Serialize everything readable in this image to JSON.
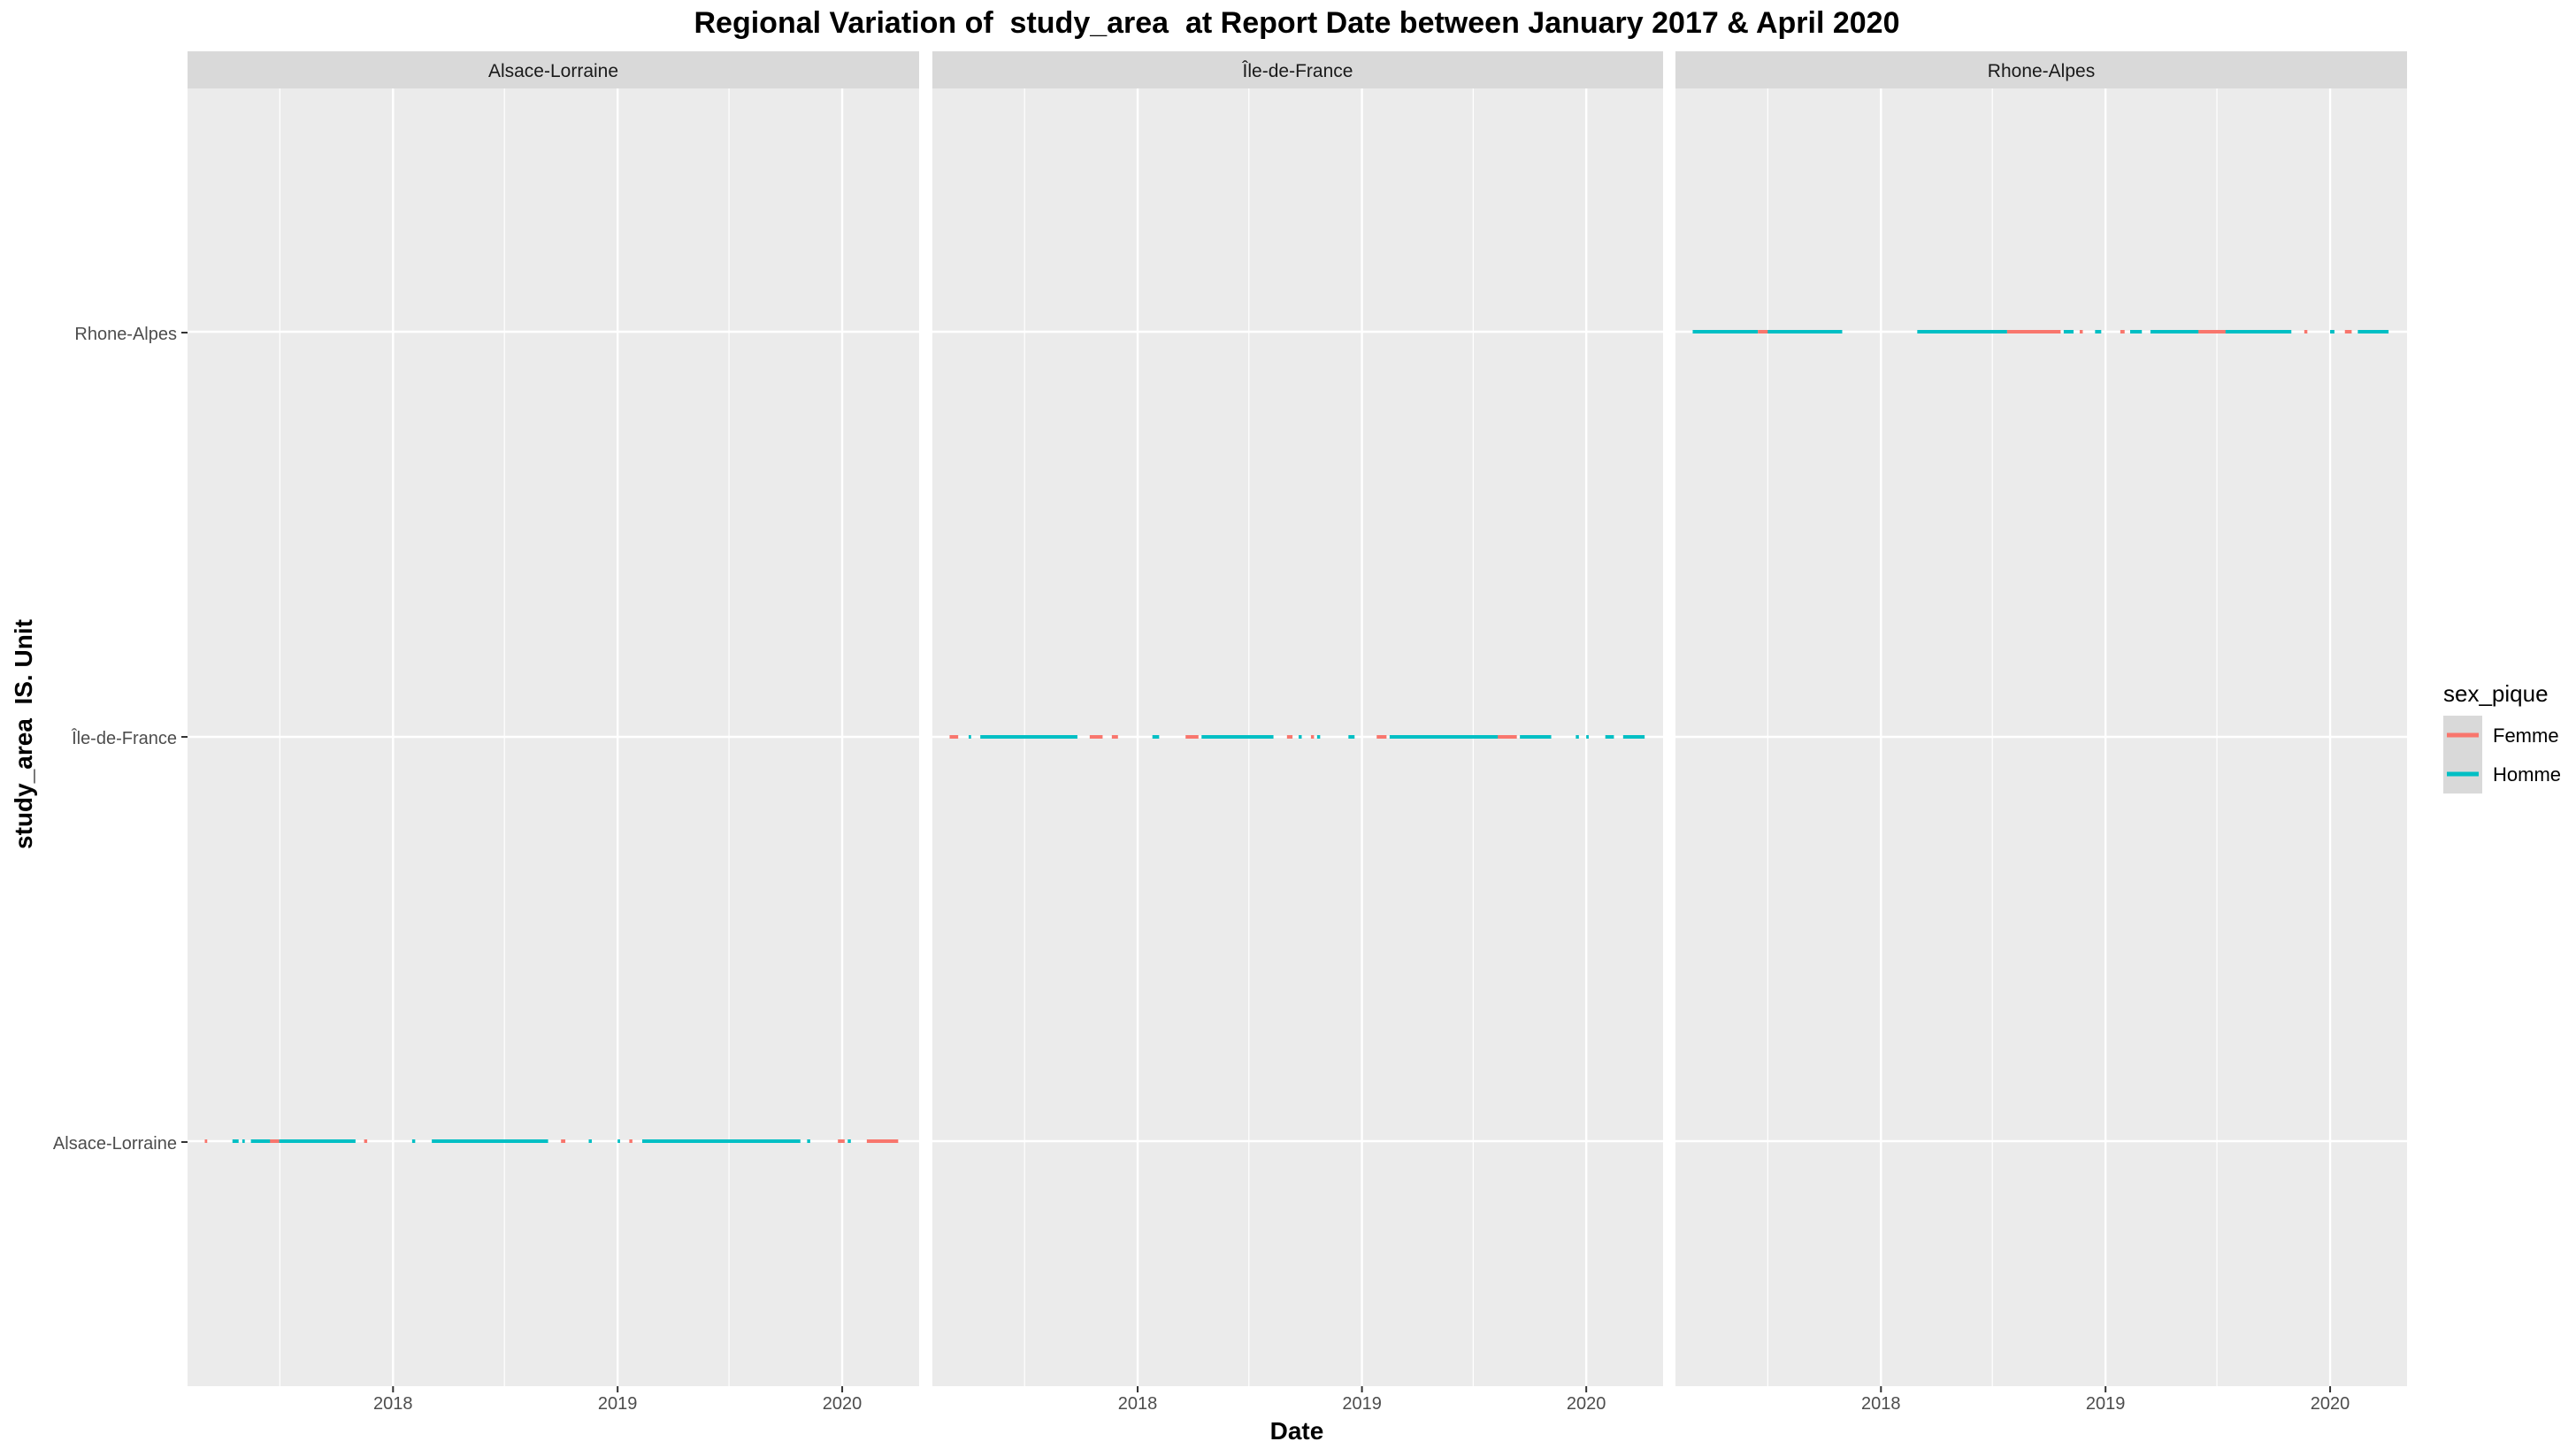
{
  "chart_data": {
    "type": "line",
    "title": "Regional Variation of  study_area  at Report Date between January 2017 & April 2020",
    "xlabel": "Date",
    "ylabel": "study_area  IS. Unit",
    "x_range": [
      "2017-02-01",
      "2020-05-05"
    ],
    "x_ticks": [
      "2018",
      "2019",
      "2020"
    ],
    "y_categories": [
      "Alsace-Lorraine",
      "Île-de-France",
      "Rhone-Alpes"
    ],
    "grid": true,
    "legend": {
      "title": "sex_pique",
      "placement": "right",
      "entries": [
        {
          "label": "Femme",
          "color": "#F8766D"
        },
        {
          "label": "Homme",
          "color": "#00BFC4"
        }
      ]
    },
    "panels": [
      {
        "name": "Alsace-Lorraine",
        "category": "Alsace-Lorraine",
        "series": [
          {
            "name": "Homme",
            "segments": [
              [
                "2017-04-15",
                "2017-04-25"
              ],
              [
                "2017-05-01",
                "2017-05-05"
              ],
              [
                "2017-05-15",
                "2017-11-01"
              ],
              [
                "2018-02-01",
                "2018-02-06"
              ],
              [
                "2018-03-05",
                "2018-09-10"
              ],
              [
                "2018-11-15",
                "2018-11-20"
              ],
              [
                "2019-01-01",
                "2019-01-05"
              ],
              [
                "2019-02-10",
                "2019-10-25"
              ],
              [
                "2019-11-05",
                "2019-11-10"
              ],
              [
                "2020-01-10",
                "2020-01-15"
              ]
            ]
          },
          {
            "name": "Femme",
            "segments": [
              [
                "2017-03-01",
                "2017-03-05"
              ],
              [
                "2017-06-15",
                "2017-06-30"
              ],
              [
                "2017-11-15",
                "2017-11-20"
              ],
              [
                "2018-10-01",
                "2018-10-08"
              ],
              [
                "2019-01-20",
                "2019-01-25"
              ],
              [
                "2019-12-25",
                "2020-01-05"
              ],
              [
                "2020-02-10",
                "2020-04-01"
              ]
            ]
          }
        ]
      },
      {
        "name": "Île-de-France",
        "category": "Île-de-France",
        "series": [
          {
            "name": "Homme",
            "segments": [
              [
                "2017-04-01",
                "2017-04-05"
              ],
              [
                "2017-04-20",
                "2017-09-25"
              ],
              [
                "2018-01-25",
                "2018-02-05"
              ],
              [
                "2018-04-15",
                "2018-08-10"
              ],
              [
                "2018-09-20",
                "2018-09-25"
              ],
              [
                "2018-10-20",
                "2018-10-25"
              ],
              [
                "2018-12-10",
                "2018-12-20"
              ],
              [
                "2019-02-15",
                "2019-08-25"
              ],
              [
                "2019-09-15",
                "2019-11-05"
              ],
              [
                "2019-12-15",
                "2019-12-20"
              ],
              [
                "2020-01-01",
                "2020-01-05"
              ],
              [
                "2020-02-01",
                "2020-02-15"
              ],
              [
                "2020-03-01",
                "2020-04-05"
              ]
            ]
          },
          {
            "name": "Femme",
            "segments": [
              [
                "2017-03-01",
                "2017-03-15"
              ],
              [
                "2017-10-15",
                "2017-11-05"
              ],
              [
                "2017-11-20",
                "2017-11-30"
              ],
              [
                "2018-03-20",
                "2018-04-10"
              ],
              [
                "2018-09-01",
                "2018-09-10"
              ],
              [
                "2018-10-10",
                "2018-10-15"
              ],
              [
                "2019-01-25",
                "2019-02-10"
              ],
              [
                "2019-08-10",
                "2019-09-10"
              ]
            ]
          }
        ]
      },
      {
        "name": "Rhone-Alpes",
        "category": "Rhone-Alpes",
        "series": [
          {
            "name": "Homme",
            "segments": [
              [
                "2017-03-01",
                "2017-06-15"
              ],
              [
                "2017-06-30",
                "2017-10-30"
              ],
              [
                "2018-03-01",
                "2018-07-25"
              ],
              [
                "2018-10-25",
                "2018-11-10"
              ],
              [
                "2018-12-15",
                "2018-12-25"
              ],
              [
                "2019-02-10",
                "2019-03-01"
              ],
              [
                "2019-03-15",
                "2019-10-30"
              ],
              [
                "2020-01-01",
                "2020-01-08"
              ],
              [
                "2020-02-15",
                "2020-04-05"
              ]
            ]
          },
          {
            "name": "Femme",
            "segments": [
              [
                "2017-06-15",
                "2017-07-01"
              ],
              [
                "2018-07-25",
                "2018-10-20"
              ],
              [
                "2018-11-20",
                "2018-11-25"
              ],
              [
                "2019-01-25",
                "2019-02-01"
              ],
              [
                "2019-06-01",
                "2019-07-15"
              ],
              [
                "2019-11-20",
                "2019-11-25"
              ],
              [
                "2020-01-25",
                "2020-02-05"
              ]
            ]
          }
        ]
      }
    ]
  }
}
